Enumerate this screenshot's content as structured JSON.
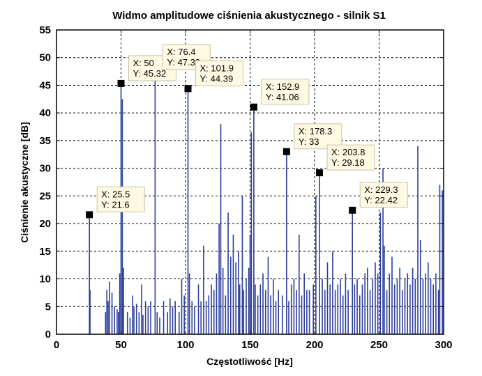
{
  "chart_data": {
    "type": "line",
    "title": "Widmo amplitudowe ciśnienia akustycznego - silnik S1",
    "xlabel": "Częstotliwość [Hz]",
    "ylabel": "Ciśnienie akustyczne [dB]",
    "xlim": [
      0,
      300
    ],
    "ylim": [
      0,
      55
    ],
    "xticks": [
      0,
      50,
      100,
      150,
      200,
      250,
      300
    ],
    "yticks": [
      0,
      5,
      10,
      15,
      20,
      25,
      30,
      35,
      40,
      45,
      50,
      55
    ],
    "grid": true,
    "series": [
      {
        "name": "Widmo S1",
        "color": "#2c3e9a",
        "stems": [
          [
            25.5,
            21.6
          ],
          [
            26,
            8
          ],
          [
            38,
            4
          ],
          [
            39,
            8
          ],
          [
            40,
            6
          ],
          [
            41,
            9.5
          ],
          [
            43,
            7.5
          ],
          [
            45,
            5
          ],
          [
            47,
            4.5
          ],
          [
            48,
            4
          ],
          [
            49,
            11
          ],
          [
            50,
            45.32
          ],
          [
            51,
            42.5
          ],
          [
            52,
            12
          ],
          [
            55,
            4
          ],
          [
            57,
            3
          ],
          [
            59,
            7
          ],
          [
            60,
            5
          ],
          [
            62,
            5.5
          ],
          [
            64,
            4
          ],
          [
            66,
            9
          ],
          [
            67,
            3.5
          ],
          [
            69,
            6
          ],
          [
            71,
            5
          ],
          [
            73,
            6
          ],
          [
            76.4,
            47.33
          ],
          [
            78,
            4
          ],
          [
            80,
            3
          ],
          [
            83,
            6
          ],
          [
            86,
            4
          ],
          [
            88,
            6.5
          ],
          [
            90,
            5
          ],
          [
            92,
            6
          ],
          [
            95,
            4
          ],
          [
            97,
            10
          ],
          [
            99,
            7
          ],
          [
            101.9,
            44.39
          ],
          [
            103,
            11
          ],
          [
            105,
            6
          ],
          [
            107,
            5
          ],
          [
            110,
            9
          ],
          [
            112,
            6
          ],
          [
            114,
            16
          ],
          [
            116,
            6
          ],
          [
            118,
            7
          ],
          [
            120,
            9
          ],
          [
            122,
            8
          ],
          [
            124,
            11
          ],
          [
            126,
            20
          ],
          [
            127.3,
            38
          ],
          [
            129,
            12
          ],
          [
            131,
            7
          ],
          [
            133,
            22
          ],
          [
            135,
            14
          ],
          [
            137,
            18
          ],
          [
            139,
            13
          ],
          [
            141,
            15
          ],
          [
            142,
            9
          ],
          [
            144,
            25
          ],
          [
            145,
            8
          ],
          [
            147,
            10
          ],
          [
            149,
            12
          ],
          [
            150,
            18
          ],
          [
            151,
            36.5
          ],
          [
            152.9,
            41.06
          ],
          [
            154,
            9
          ],
          [
            156,
            7
          ],
          [
            158,
            9
          ],
          [
            160,
            11
          ],
          [
            162,
            8
          ],
          [
            164,
            14
          ],
          [
            166,
            7
          ],
          [
            168,
            10
          ],
          [
            170,
            6
          ],
          [
            172,
            8
          ],
          [
            175,
            7
          ],
          [
            178.3,
            33
          ],
          [
            180,
            6
          ],
          [
            182,
            9
          ],
          [
            184,
            10
          ],
          [
            186,
            8
          ],
          [
            188,
            18
          ],
          [
            190,
            7
          ],
          [
            192,
            11
          ],
          [
            194,
            8
          ],
          [
            196,
            8
          ],
          [
            199,
            9
          ],
          [
            201,
            25
          ],
          [
            203.8,
            29.18
          ],
          [
            206,
            10
          ],
          [
            208,
            8
          ],
          [
            210,
            13
          ],
          [
            212,
            9
          ],
          [
            214,
            15
          ],
          [
            216,
            8
          ],
          [
            218,
            9
          ],
          [
            220,
            10
          ],
          [
            222,
            7
          ],
          [
            224,
            11
          ],
          [
            226,
            8
          ],
          [
            229.3,
            22.42
          ],
          [
            231,
            9
          ],
          [
            233,
            10
          ],
          [
            235,
            7
          ],
          [
            237,
            9
          ],
          [
            239,
            11
          ],
          [
            241,
            12
          ],
          [
            243,
            8
          ],
          [
            245,
            10
          ],
          [
            247,
            13
          ],
          [
            249,
            11
          ],
          [
            251,
            22
          ],
          [
            253,
            30
          ],
          [
            254,
            16
          ],
          [
            256,
            8
          ],
          [
            258,
            11
          ],
          [
            260,
            14
          ],
          [
            262,
            9
          ],
          [
            264,
            10
          ],
          [
            266,
            12
          ],
          [
            268,
            8
          ],
          [
            270,
            10
          ],
          [
            272,
            11
          ],
          [
            274,
            9
          ],
          [
            276,
            12
          ],
          [
            278,
            10
          ],
          [
            280,
            34
          ],
          [
            282,
            17
          ],
          [
            284,
            10
          ],
          [
            286,
            11
          ],
          [
            288,
            13
          ],
          [
            290,
            10
          ],
          [
            292,
            9
          ],
          [
            294,
            11
          ],
          [
            296,
            8
          ],
          [
            297,
            27
          ],
          [
            299,
            26
          ]
        ]
      }
    ],
    "annotations": [
      {
        "x": 25.5,
        "y": 21.6,
        "x_text": "X: 25.5",
        "y_text": "Y: 21.6"
      },
      {
        "x": 50,
        "y": 45.32,
        "x_text": "X: 50",
        "y_text": "Y: 45.32"
      },
      {
        "x": 76.4,
        "y": 47.33,
        "x_text": "X: 76.4",
        "y_text": "Y: 47.33"
      },
      {
        "x": 101.9,
        "y": 44.39,
        "x_text": "X: 101.9",
        "y_text": "Y: 44.39"
      },
      {
        "x": 152.9,
        "y": 41.06,
        "x_text": "X: 152.9",
        "y_text": "Y: 41.06"
      },
      {
        "x": 178.3,
        "y": 33,
        "x_text": "X: 178.3",
        "y_text": "Y: 33"
      },
      {
        "x": 203.8,
        "y": 29.18,
        "x_text": "X: 203.8",
        "y_text": "Y: 29.18"
      },
      {
        "x": 229.3,
        "y": 22.42,
        "x_text": "X: 229.3",
        "y_text": "Y: 22.42"
      }
    ]
  }
}
